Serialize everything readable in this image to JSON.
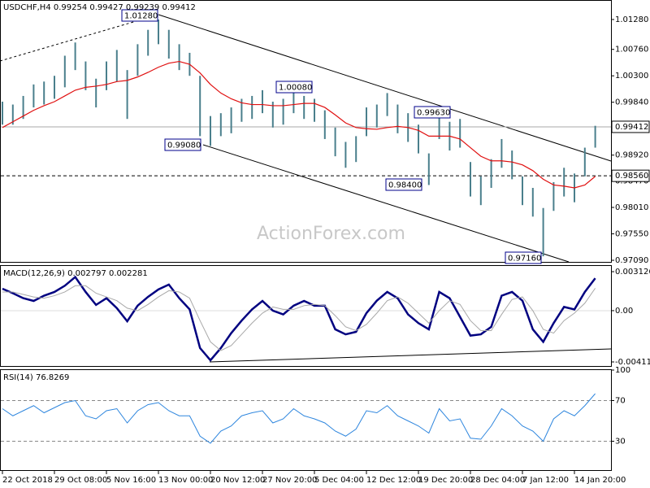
{
  "chart_data": [
    {
      "type": "ohlc",
      "title": "USDCHF,H4 0.99254 0.99427 0.99239 0.99412",
      "watermark": "ActionForex.com",
      "categories": [
        "22 Oct 2018",
        null,
        null,
        null,
        null,
        "29 Oct 08:00",
        null,
        null,
        null,
        null,
        "5 Nov 16:00",
        null,
        null,
        null,
        null,
        "13 Nov 00:00",
        null,
        null,
        null,
        null,
        "20 Nov 12:00",
        null,
        null,
        null,
        null,
        "27 Nov 20:00",
        null,
        null,
        null,
        null,
        "5 Dec 04:00",
        null,
        null,
        null,
        null,
        "12 Dec 12:00",
        null,
        null,
        null,
        null,
        "19 Dec 20:00",
        null,
        null,
        null,
        null,
        "28 Dec 04:00",
        null,
        null,
        null,
        null,
        "7 Jan 12:00",
        null,
        null,
        null,
        null,
        "14 Jan 20:00",
        null,
        null
      ],
      "color": "#4a7f8c",
      "high": [
        0.9985,
        0.998,
        0.9995,
        1.0015,
        1.002,
        1.003,
        1.0065,
        1.0088,
        1.0055,
        1.0025,
        1.0055,
        1.0075,
        1.004,
        1.0085,
        1.011,
        1.0128,
        1.011,
        1.0085,
        1.007,
        1.003,
        0.996,
        0.9965,
        0.9975,
        0.999,
        0.9995,
        1.0005,
        0.9985,
        0.999,
        1.0008,
        0.9995,
        0.999,
        0.997,
        0.994,
        0.9915,
        0.9925,
        0.9975,
        0.998,
        1.0,
        0.998,
        0.9965,
        0.9945,
        0.9895,
        0.9963,
        0.995,
        0.9955,
        0.988,
        0.9855,
        0.9885,
        0.992,
        0.99,
        0.9855,
        0.9835,
        0.98,
        0.9845,
        0.987,
        0.986,
        0.9905,
        0.9943
      ],
      "low": [
        0.9945,
        0.9945,
        0.9955,
        0.9975,
        0.998,
        0.999,
        1.001,
        1.004,
        1.0005,
        0.9975,
        1.0005,
        1.002,
        0.9955,
        1.003,
        1.0065,
        1.0085,
        1.006,
        1.004,
        1.003,
        0.9925,
        0.9908,
        0.9925,
        0.993,
        0.995,
        0.9955,
        0.9965,
        0.994,
        0.9945,
        0.9965,
        0.9955,
        0.995,
        0.992,
        0.989,
        0.987,
        0.988,
        0.9925,
        0.994,
        0.996,
        0.993,
        0.9915,
        0.9895,
        0.984,
        0.992,
        0.99,
        0.9905,
        0.982,
        0.9805,
        0.9835,
        0.987,
        0.985,
        0.9805,
        0.9785,
        0.9716,
        0.9795,
        0.982,
        0.981,
        0.9855,
        0.9905
      ],
      "ma": {
        "color": "#e01010",
        "values": [
          0.994,
          0.995,
          0.996,
          0.997,
          0.9978,
          0.9985,
          0.9995,
          1.0005,
          1.001,
          1.0012,
          1.0015,
          1.002,
          1.0022,
          1.0028,
          1.0036,
          1.0045,
          1.0052,
          1.0055,
          1.005,
          1.0035,
          1.0015,
          1.0,
          0.999,
          0.9983,
          0.998,
          0.998,
          0.9978,
          0.9978,
          0.998,
          0.9982,
          0.9982,
          0.9975,
          0.9962,
          0.9948,
          0.994,
          0.9938,
          0.9937,
          0.994,
          0.9942,
          0.994,
          0.9935,
          0.9925,
          0.9925,
          0.9925,
          0.992,
          0.9905,
          0.989,
          0.9882,
          0.9882,
          0.988,
          0.9875,
          0.9865,
          0.985,
          0.984,
          0.9838,
          0.9835,
          0.984,
          0.9855
        ]
      },
      "ylim": [
        0.97062,
        1.01591
      ],
      "yticks": [
        {
          "value": 1.0128,
          "label": "1.01280"
        },
        {
          "value": 1.0076,
          "label": "1.00760"
        },
        {
          "value": 1.003,
          "label": "1.00300"
        },
        {
          "value": 0.9984,
          "label": "0.99840"
        },
        {
          "value": 0.9938,
          "label": "0.99380"
        },
        {
          "value": 0.9892,
          "label": "0.98920"
        },
        {
          "value": 0.9847,
          "label": "0.98470"
        },
        {
          "value": 0.9801,
          "label": "0.98010"
        },
        {
          "value": 0.9755,
          "label": "0.97550"
        },
        {
          "value": 0.9709,
          "label": "0.97090"
        }
      ],
      "last_price": {
        "value": 0.99412,
        "label": "0.99412"
      },
      "level": {
        "value": 0.9856,
        "label": "0.98560"
      },
      "annotations": [
        "1.01280",
        "1.00080",
        "0.99630",
        "0.99080",
        "0.98400",
        "0.97160"
      ]
    },
    {
      "type": "line",
      "title": "MACD(12,26,9) 0.002797 0.002281",
      "series": [
        {
          "color": "#000080",
          "values": [
            0.00176,
            0.0014,
            0.001,
            0.00078,
            0.0012,
            0.0015,
            0.002,
            0.0027,
            0.0015,
            0.00046,
            0.001,
            0.0002,
            -0.00085,
            0.0004,
            0.00111,
            0.0017,
            0.00209,
            0.001,
            0.0001,
            -0.003,
            -0.00398,
            -0.003,
            -0.0018,
            -0.0008,
            0.0001,
            0.00078,
            0.0,
            -0.0003,
            0.0004,
            0.00078,
            0.0004,
            0.0004,
            -0.0015,
            -0.0019,
            -0.0017,
            -0.0002,
            0.0008,
            0.0015,
            0.001,
            -0.0003,
            -0.001,
            -0.0015,
            0.0015,
            0.001,
            -0.0005,
            -0.002,
            -0.0019,
            -0.0013,
            0.0012,
            0.0015,
            0.0008,
            -0.0015,
            -0.0025,
            -0.001,
            0.0003,
            0.0001,
            0.0015,
            0.0026
          ]
        },
        {
          "color": "#a8a8a8",
          "values": [
            0.0015,
            0.0015,
            0.0013,
            0.0011,
            0.001,
            0.0012,
            0.0015,
            0.002,
            0.002,
            0.0014,
            0.0011,
            0.0008,
            0.0002,
            0.0,
            0.0005,
            0.0011,
            0.0016,
            0.0015,
            0.001,
            -0.0008,
            -0.0025,
            -0.0032,
            -0.0028,
            -0.0019,
            -0.001,
            -0.0002,
            0.0003,
            0.0001,
            0.0001,
            0.0004,
            0.0005,
            0.0004,
            -0.0004,
            -0.0013,
            -0.0016,
            -0.0011,
            -0.0002,
            0.0008,
            0.0011,
            0.0006,
            -0.0002,
            -0.001,
            0.0,
            0.0008,
            0.0005,
            -0.0008,
            -0.0016,
            -0.0016,
            -0.0003,
            0.0009,
            0.0011,
            0.0,
            -0.0015,
            -0.0018,
            -0.0008,
            -0.0002,
            0.0006,
            0.0018
          ]
        }
      ],
      "ylim": [
        -0.00444,
        0.00365
      ],
      "yticks": [
        0.003126,
        {
          "value": 0,
          "label": "0.00"
        },
        -0.004113
      ]
    },
    {
      "type": "line",
      "title": "RSI(14) 76.8269",
      "series": [
        {
          "color": "#2e86de",
          "values": [
            62,
            55,
            60,
            65,
            58,
            63,
            68,
            70,
            55,
            52,
            60,
            62,
            48,
            60,
            66,
            68,
            60,
            55,
            55,
            35,
            28,
            40,
            45,
            55,
            58,
            60,
            48,
            52,
            62,
            55,
            52,
            48,
            40,
            35,
            42,
            60,
            58,
            65,
            55,
            50,
            45,
            38,
            62,
            50,
            52,
            33,
            32,
            45,
            62,
            55,
            45,
            40,
            30,
            52,
            60,
            55,
            65,
            76.8
          ]
        }
      ],
      "ylim": [
        0,
        100
      ],
      "yticks": [
        100,
        70,
        30
      ]
    }
  ]
}
